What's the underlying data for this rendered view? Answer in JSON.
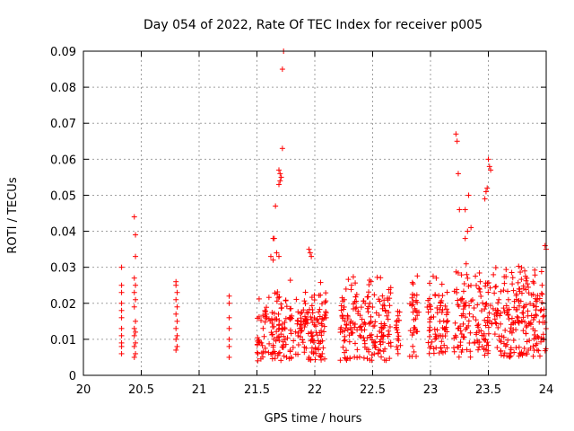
{
  "chart_data": {
    "type": "scatter",
    "title": "Day 054 of 2022, Rate Of TEC Index for receiver p005",
    "xlabel": "GPS time / hours",
    "ylabel": "ROTI / TECUs",
    "xlim": [
      20,
      24
    ],
    "ylim": [
      0,
      0.09
    ],
    "x_ticks": [
      "20",
      "20.5",
      "21",
      "21.5",
      "22",
      "22.5",
      "23",
      "23.5",
      "24"
    ],
    "x_tick_values": [
      20,
      20.5,
      21,
      21.5,
      22,
      22.5,
      23,
      23.5,
      24
    ],
    "y_ticks": [
      "0",
      "0.01",
      "0.02",
      "0.03",
      "0.04",
      "0.05",
      "0.06",
      "0.07",
      "0.08",
      "0.09"
    ],
    "y_tick_values": [
      0,
      0.01,
      0.02,
      0.03,
      0.04,
      0.05,
      0.06,
      0.07,
      0.08,
      0.09
    ],
    "grid": true,
    "marker": "plus",
    "color": "#ff0000",
    "series": [
      {
        "name": "p005",
        "points": [
          [
            20.33,
            0.03
          ],
          [
            20.33,
            0.025
          ],
          [
            20.33,
            0.023
          ],
          [
            20.33,
            0.02
          ],
          [
            20.33,
            0.018
          ],
          [
            20.33,
            0.016
          ],
          [
            20.33,
            0.013
          ],
          [
            20.33,
            0.011
          ],
          [
            20.33,
            0.009
          ],
          [
            20.33,
            0.008
          ],
          [
            20.33,
            0.006
          ],
          [
            20.44,
            0.044
          ],
          [
            20.45,
            0.039
          ],
          [
            20.45,
            0.033
          ],
          [
            20.44,
            0.027
          ],
          [
            20.45,
            0.025
          ],
          [
            20.44,
            0.023
          ],
          [
            20.45,
            0.021
          ],
          [
            20.44,
            0.019
          ],
          [
            20.45,
            0.015
          ],
          [
            20.44,
            0.013
          ],
          [
            20.45,
            0.012
          ],
          [
            20.44,
            0.011
          ],
          [
            20.45,
            0.009
          ],
          [
            20.44,
            0.008
          ],
          [
            20.45,
            0.006
          ],
          [
            20.44,
            0.005
          ],
          [
            20.8,
            0.026
          ],
          [
            20.8,
            0.025
          ],
          [
            20.81,
            0.023
          ],
          [
            20.8,
            0.021
          ],
          [
            20.81,
            0.019
          ],
          [
            20.8,
            0.017
          ],
          [
            20.81,
            0.015
          ],
          [
            20.8,
            0.013
          ],
          [
            20.81,
            0.011
          ],
          [
            20.8,
            0.01
          ],
          [
            20.81,
            0.008
          ],
          [
            20.8,
            0.007
          ],
          [
            21.26,
            0.022
          ],
          [
            21.26,
            0.02
          ],
          [
            21.26,
            0.016
          ],
          [
            21.26,
            0.013
          ],
          [
            21.26,
            0.01
          ],
          [
            21.26,
            0.008
          ],
          [
            21.26,
            0.005
          ],
          [
            21.66,
            0.047
          ],
          [
            21.69,
            0.053
          ],
          [
            21.7,
            0.054
          ],
          [
            21.7,
            0.056
          ],
          [
            21.71,
            0.055
          ],
          [
            21.69,
            0.057
          ],
          [
            21.72,
            0.063
          ],
          [
            21.72,
            0.085
          ],
          [
            21.73,
            0.09
          ],
          [
            21.64,
            0.038
          ],
          [
            21.65,
            0.038
          ],
          [
            21.62,
            0.033
          ],
          [
            21.64,
            0.032
          ],
          [
            21.67,
            0.034
          ],
          [
            21.69,
            0.033
          ],
          [
            21.95,
            0.035
          ],
          [
            21.96,
            0.034
          ],
          [
            21.97,
            0.033
          ],
          [
            23.22,
            0.067
          ],
          [
            23.23,
            0.065
          ],
          [
            23.24,
            0.056
          ],
          [
            23.25,
            0.046
          ],
          [
            23.3,
            0.046
          ],
          [
            23.33,
            0.05
          ],
          [
            23.35,
            0.041
          ],
          [
            23.3,
            0.038
          ],
          [
            23.32,
            0.04
          ],
          [
            23.47,
            0.049
          ],
          [
            23.48,
            0.051
          ],
          [
            23.49,
            0.052
          ],
          [
            23.5,
            0.06
          ],
          [
            23.51,
            0.058
          ],
          [
            23.52,
            0.057
          ],
          [
            23.99,
            0.036
          ],
          [
            24.0,
            0.035
          ]
        ]
      }
    ],
    "dense_regions": [
      {
        "x": [
          21.5,
          22.1
        ],
        "y": [
          0.004,
          0.027
        ]
      },
      {
        "x": [
          22.22,
          22.67
        ],
        "y": [
          0.004,
          0.03
        ]
      },
      {
        "x": [
          22.7,
          22.74
        ],
        "y": [
          0.006,
          0.021
        ]
      },
      {
        "x": [
          22.82,
          22.9
        ],
        "y": [
          0.005,
          0.03
        ]
      },
      {
        "x": [
          22.97,
          23.15
        ],
        "y": [
          0.006,
          0.03
        ]
      },
      {
        "x": [
          23.2,
          24.0
        ],
        "y": [
          0.005,
          0.032
        ]
      }
    ]
  }
}
